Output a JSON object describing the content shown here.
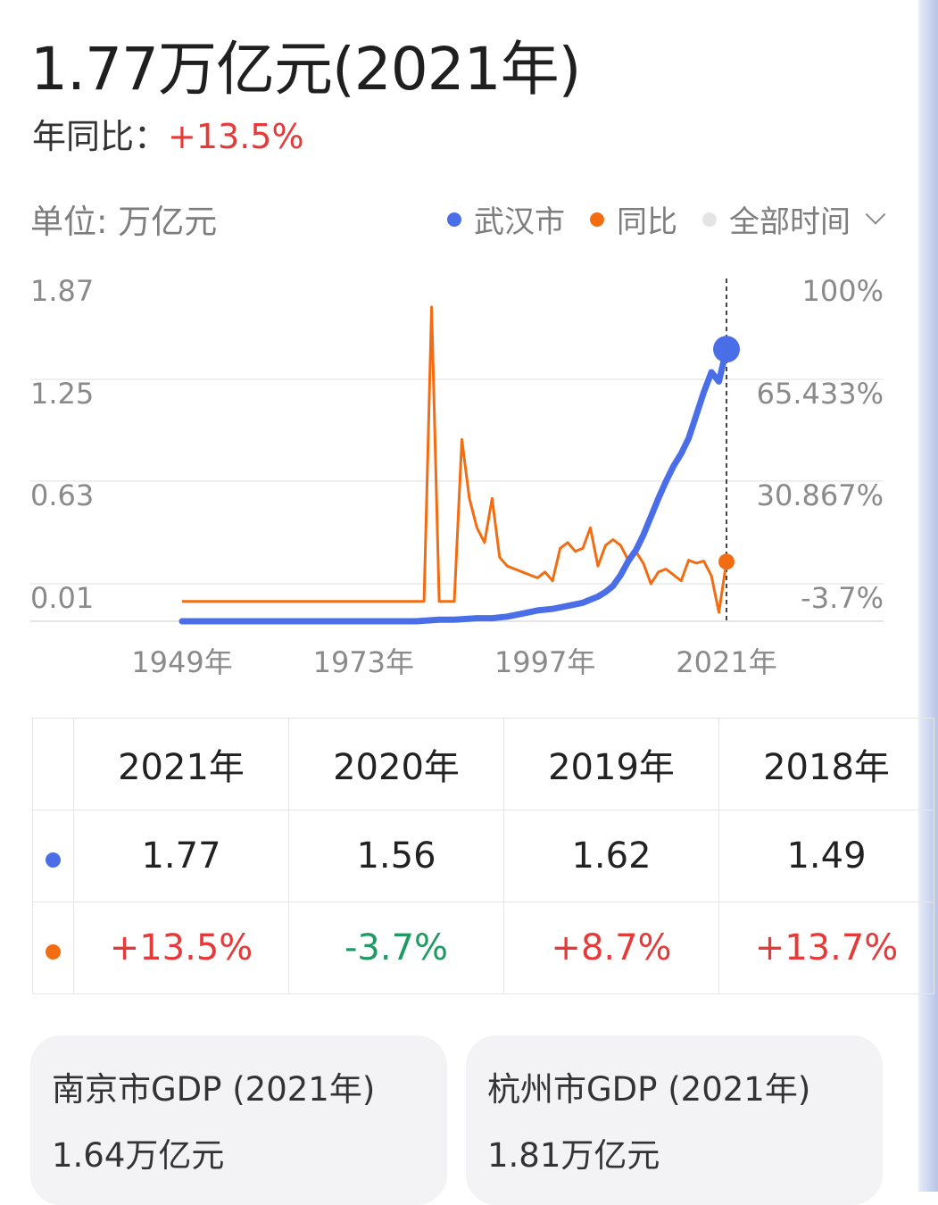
{
  "header": {
    "headline": "1.77万亿元(2021年)",
    "yoy_label": "年同比：",
    "yoy_value": "+13.5%"
  },
  "chart_header": {
    "unit": "单位: 万亿元",
    "legend": [
      {
        "label": "武汉市",
        "color": "#4a6ee8"
      },
      {
        "label": "同比",
        "color": "#f26c12"
      },
      {
        "label": "全部时间",
        "color": "#e4e4e4"
      }
    ]
  },
  "chart_data": {
    "type": "line",
    "x_ticks": [
      "1949年",
      "1973年",
      "1997年",
      "2021年"
    ],
    "y_left_ticks": [
      "1.87",
      "1.25",
      "0.63",
      "0.01"
    ],
    "y_right_ticks": [
      "100%",
      "65.433%",
      "30.867%",
      "-3.7%"
    ],
    "y_left_range": [
      0.01,
      1.87
    ],
    "y_right_range": [
      -3.7,
      100
    ],
    "x_range": [
      1949,
      2021
    ],
    "highlight_year": 2021,
    "series": [
      {
        "name": "武汉市",
        "axis": "left",
        "color": "#4a6ee8",
        "x": [
          1949,
          1955,
          1960,
          1965,
          1970,
          1975,
          1978,
          1980,
          1983,
          1985,
          1988,
          1990,
          1992,
          1994,
          1996,
          1998,
          2000,
          2002,
          2004,
          2005,
          2006,
          2007,
          2008,
          2009,
          2010,
          2011,
          2012,
          2013,
          2014,
          2015,
          2016,
          2017,
          2018,
          2019,
          2020,
          2021
        ],
        "y": [
          0.0,
          0.0,
          0.0,
          0.0,
          0.0,
          0.0,
          0.0,
          0.0,
          0.01,
          0.01,
          0.02,
          0.02,
          0.03,
          0.05,
          0.07,
          0.08,
          0.1,
          0.12,
          0.16,
          0.19,
          0.23,
          0.3,
          0.39,
          0.46,
          0.56,
          0.68,
          0.8,
          0.91,
          1.01,
          1.09,
          1.19,
          1.34,
          1.49,
          1.62,
          1.56,
          1.77
        ]
      },
      {
        "name": "同比",
        "axis": "right",
        "color": "#f26c12",
        "x": [
          1949,
          1981,
          1982,
          1983,
          1984,
          1985,
          1986,
          1987,
          1988,
          1989,
          1990,
          1991,
          1992,
          1993,
          1994,
          1995,
          1996,
          1997,
          1998,
          1999,
          2000,
          2001,
          2002,
          2003,
          2004,
          2005,
          2006,
          2007,
          2008,
          2009,
          2010,
          2011,
          2012,
          2013,
          2014,
          2015,
          2016,
          2017,
          2018,
          2019,
          2020,
          2021
        ],
        "y": [
          0,
          0,
          100,
          0,
          0,
          0,
          55,
          35,
          25,
          20,
          35,
          15,
          12,
          11,
          10,
          9,
          8,
          10,
          7,
          18,
          20,
          17,
          18,
          25,
          12,
          19,
          21,
          19,
          14,
          17,
          13,
          6,
          10,
          11,
          9,
          7,
          14,
          13,
          13.7,
          8.7,
          -3.7,
          13.5
        ]
      }
    ]
  },
  "table": {
    "years": [
      "2021年",
      "2020年",
      "2019年",
      "2018年"
    ],
    "gdp_values": [
      "1.77",
      "1.56",
      "1.62",
      "1.49"
    ],
    "yoy_values": [
      "+13.5%",
      "-3.7%",
      "+8.7%",
      "+13.7%"
    ]
  },
  "cards": [
    {
      "title": "南京市GDP (2021年)",
      "value": "1.64万亿元"
    },
    {
      "title": "杭州市GDP (2021年)",
      "value": "1.81万亿元"
    }
  ]
}
